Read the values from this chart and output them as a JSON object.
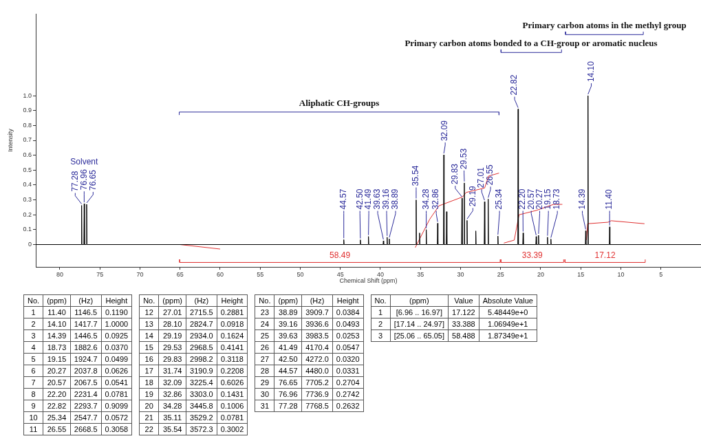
{
  "chart_data": {
    "type": "line",
    "xlabel": "Chemical Shift (ppm)",
    "ylabel": "Intensity",
    "xlim": [
      83,
      0
    ],
    "xticks": [
      80,
      75,
      70,
      65,
      60,
      55,
      50,
      45,
      40,
      35,
      30,
      25,
      20,
      15,
      10,
      5
    ],
    "ylim": [
      -0.15,
      1.55
    ],
    "yticks": [
      0,
      {
        "value": 0.1,
        "label": "0.1"
      },
      {
        "value": 0.2,
        "label": "0.2"
      },
      {
        "value": 0.3,
        "label": "0.3"
      },
      {
        "value": 0.4,
        "label": "0.4"
      },
      {
        "value": 0.5,
        "label": "0.5"
      },
      {
        "value": 0.6,
        "label": "0.6"
      },
      {
        "value": 0.7,
        "label": "0.7"
      },
      {
        "value": 0.8,
        "label": "0.8"
      },
      {
        "value": 0.9,
        "label": "0.9"
      },
      {
        "value": 1,
        "label": "1.0"
      }
    ],
    "grid": false,
    "legend": false,
    "marker": "none",
    "line_style": "solid",
    "series": [
      {
        "color": "#000000",
        "x": [
          83,
          77.32,
          77.28,
          77.24,
          77.0,
          76.96,
          76.92,
          76.69,
          76.65,
          76.61,
          44.61,
          44.57,
          44.53,
          42.54,
          42.5,
          42.46,
          41.53,
          41.49,
          41.45,
          39.67,
          39.63,
          39.59,
          39.2,
          39.16,
          39.12,
          38.93,
          38.89,
          38.85,
          35.58,
          35.54,
          35.5,
          35.15,
          35.11,
          35.07,
          34.32,
          34.28,
          34.24,
          32.9,
          32.86,
          32.82,
          32.13,
          32.09,
          32.05,
          31.78,
          31.74,
          31.7,
          29.87,
          29.83,
          29.79,
          29.57,
          29.53,
          29.49,
          29.23,
          29.19,
          29.15,
          28.14,
          28.1,
          28.06,
          27.05,
          27.01,
          26.97,
          26.59,
          26.55,
          26.51,
          25.38,
          25.34,
          25.3,
          22.86,
          22.82,
          22.78,
          22.24,
          22.2,
          22.16,
          20.61,
          20.57,
          20.53,
          20.31,
          20.27,
          20.23,
          19.19,
          19.15,
          19.11,
          18.77,
          18.73,
          18.69,
          14.43,
          14.39,
          14.35,
          14.14,
          14.1,
          14.06,
          11.44,
          11.4,
          11.36,
          0
        ],
        "values": [
          0,
          0,
          0.2632,
          0,
          0,
          0.2742,
          0,
          0,
          0.2704,
          0,
          0,
          0.0331,
          0,
          0,
          0.032,
          0,
          0,
          0.0547,
          0,
          0,
          0.0253,
          0,
          0,
          0.0493,
          0,
          0,
          0.0384,
          0,
          0,
          0.3002,
          0,
          0,
          0.0781,
          0,
          0,
          0.1006,
          0,
          0,
          0.1431,
          0,
          0,
          0.6026,
          0,
          0,
          0.2208,
          0,
          0,
          0.3118,
          0,
          0,
          0.4141,
          0,
          0,
          0.1624,
          0,
          0,
          0.0918,
          0,
          0,
          0.2881,
          0,
          0,
          0.3058,
          0,
          0,
          0.0572,
          0,
          0,
          0.9099,
          0,
          0,
          0.0781,
          0,
          0,
          0.0541,
          0,
          0,
          0.0626,
          0,
          0,
          0.0499,
          0,
          0,
          0.037,
          0,
          0,
          0.0925,
          0,
          0,
          1,
          0,
          0,
          0.119,
          0,
          0
        ]
      },
      {
        "color": "#e03030",
        "x": [
          65,
          60,
          47,
          35.65,
          33.85,
          32.7,
          29.75,
          29.3,
          27.0,
          26.5,
          25.2
        ],
        "values": [
          0,
          -0.03,
          null,
          -0.02,
          0.17,
          0.26,
          0.32,
          0.35,
          0.38,
          0.46,
          0.48
        ]
      },
      {
        "color": "#e03030",
        "x": [
          24.6,
          23.3,
          22.7,
          20.5,
          18.4,
          17.3
        ],
        "values": [
          0.01,
          0.03,
          0.2,
          0.23,
          0.27,
          0.27
        ]
      },
      {
        "color": "#e03030",
        "x": [
          14.3,
          14.15,
          11.6,
          11.2,
          7.05
        ],
        "values": [
          0.03,
          0.14,
          0.15,
          0.16,
          0.14
        ]
      },
      {
        "color": "#e03030",
        "x": [
          65.05,
          65.05,
          25.06,
          25.06
        ],
        "values": [
          -0.1,
          -0.12,
          -0.12,
          -0.1
        ]
      },
      {
        "color": "#e03030",
        "x": [
          24.97,
          24.97,
          17.14,
          17.14
        ],
        "values": [
          -0.1,
          -0.12,
          -0.12,
          -0.1
        ]
      },
      {
        "color": "#e03030",
        "x": [
          16.97,
          16.97,
          6.96,
          6.96
        ],
        "values": [
          -0.1,
          -0.12,
          -0.12,
          -0.1
        ]
      },
      {
        "color": "#2b2b9a",
        "x": [
          65.1,
          65.1,
          25.2,
          25.2
        ],
        "values": [
          0.87,
          0.89,
          0.89,
          0.87
        ]
      },
      {
        "color": "#2b2b9a",
        "x": [
          24.95,
          24.95,
          17.4,
          17.4
        ],
        "values": [
          1.31,
          1.29,
          1.29,
          1.31
        ]
      },
      {
        "color": "#2b2b9a",
        "x": [
          16.9,
          16.9,
          7.2,
          7.2
        ],
        "values": [
          1.43,
          1.41,
          1.41,
          1.43
        ]
      }
    ],
    "annotations": [
      {
        "text": "77.28",
        "x": 77.28,
        "y": 0.2632
      },
      {
        "text": "76.96",
        "x": 76.96,
        "y": 0.2742
      },
      "Solvent",
      {
        "text": "76.65",
        "x": 76.65,
        "y": 0.2704
      },
      {
        "text": "44.57",
        "x": 44.57,
        "y": 0.0331
      },
      {
        "text": "42.50",
        "x": 42.5,
        "y": 0.032
      },
      {
        "text": "41.49",
        "x": 41.49,
        "y": 0.0547
      },
      {
        "text": "39.63",
        "x": 39.63,
        "y": 0.0253
      },
      {
        "text": "39.16",
        "x": 39.16,
        "y": 0.0493
      },
      {
        "text": "38.89",
        "x": 38.89,
        "y": 0.0384
      },
      {
        "text": "35.54",
        "x": 35.54,
        "y": 0.3002
      },
      {
        "text": "34.28",
        "x": 34.28,
        "y": 0.1006
      },
      {
        "text": "32.86",
        "x": 32.86,
        "y": 0.1431
      },
      {
        "text": "32.09",
        "x": 32.09,
        "y": 0.6026
      },
      {
        "text": "29.83",
        "x": 29.83,
        "y": 0.3118
      },
      {
        "text": "29.53",
        "x": 29.53,
        "y": 0.4141
      },
      {
        "text": "29.19",
        "x": 29.19,
        "y": 0.1624
      },
      {
        "text": "27.01",
        "x": 27.01,
        "y": 0.2881
      },
      {
        "text": "26.55",
        "x": 26.55,
        "y": 0.3058
      },
      {
        "text": "25.34",
        "x": 25.34,
        "y": 0.0572
      },
      {
        "text": "22.82",
        "x": 22.82,
        "y": 0.9099
      },
      {
        "text": "22.20",
        "x": 22.2,
        "y": 0.0781
      },
      {
        "text": "20.57",
        "x": 20.57,
        "y": 0.0541
      },
      {
        "text": "20.27",
        "x": 20.27,
        "y": 0.0626
      },
      {
        "text": "19.15",
        "x": 19.15,
        "y": 0.0499
      },
      {
        "text": "18.73",
        "x": 18.73,
        "y": 0.037
      },
      {
        "text": "14.39",
        "x": 14.39,
        "y": 0.0925
      },
      {
        "text": "14.10",
        "x": 14.1,
        "y": 1
      },
      {
        "text": "11.40",
        "x": 11.4,
        "y": 0.119
      },
      {
        "text": "58.49",
        "x": 45.05,
        "y": -0.12
      },
      {
        "text": "33.39",
        "x": 21.05,
        "y": -0.12
      },
      {
        "text": "17.12",
        "x": 11.97,
        "y": -0.12
      },
      {
        "text": "Aliphatic CH-groups",
        "x": 45.15,
        "y": 0.89
      },
      {
        "text": "Primary carbon atoms bonded to a CH-group or aromatic nucleus",
        "x": 21.2,
        "y": 1.29
      },
      {
        "text": "Primary carbon atoms in the methyl group",
        "x": 12.05,
        "y": 1.41
      },
      "No.\t(ppm)\t(Hz)\tHeight\n1\t11.40\t1146.5\t0.1190\n2\t14.10\t1417.7\t1.0000\n3\t14.39\t1446.5\t0.0925\n4\t18.73\t1882.6\t0.0370\n5\t19.15\t1924.7\t0.0499\n6\t20.27\t2037.8\t0.0626\n7\t20.57\t2067.5\t0.0541\n8\t22.20\t2231.4\t0.0781\n9\t22.82\t2293.7\t0.9099\n10\t25.34\t2547.7\t0.0572\n11\t26.55\t2668.5\t0.3058",
      "No.\t(ppm)\t(Hz)\tHeight\n12\t27.01\t2715.5\t0.2881\n13\t28.10\t2824.7\t0.0918\n14\t29.19\t2934.0\t0.1624\n15\t29.53\t2968.5\t0.4141\n16\t29.83\t2998.2\t0.3118\n17\t31.74\t3190.9\t0.2208\n18\t32.09\t3225.4\t0.6026\n19\t32.86\t3303.0\t0.1431\n20\t34.28\t3445.8\t0.1006\n21\t35.11\t3529.2\t0.0781\n22\t35.54\t3572.3\t0.3002",
      "No.\t(ppm)\t(Hz)\tHeight\n23\t38.89\t3909.7\t0.0384\n24\t39.16\t3936.6\t0.0493\n25\t39.63\t3983.5\t0.0253\n26\t41.49\t4170.4\t0.0547\n27\t42.50\t4272.0\t0.0320\n28\t44.57\t4480.0\t0.0331\n29\t76.65\t7705.2\t0.2704\n30\t76.96\t7736.9\t0.2742\n31\t77.28\t7768.5\t0.2632",
      "No.\t(ppm)\tValue\tAbsolute Value\n1\t[6.96 .. 16.97]\t17.122\t5.48449e+0\n2\t[17.14 .. 24.97]\t33.388\t1.06949e+1\n3\t[25.06 .. 65.05]\t58.488\t1.87349e+1"
    ]
  }
}
